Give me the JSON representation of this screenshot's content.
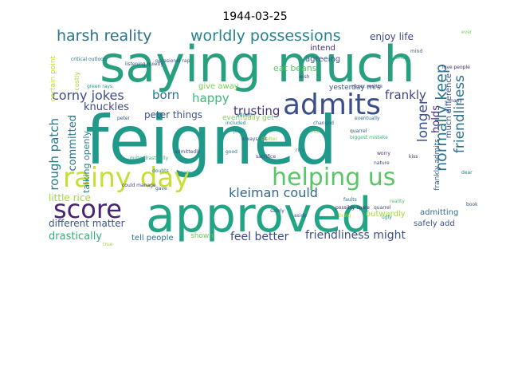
{
  "title": "1944-03-25",
  "wordcloud": {
    "words": [
      {
        "text": "feigned",
        "color": "#1f9a8a"
      },
      {
        "text": "saying much",
        "color": "#26a07f"
      },
      {
        "text": "approved",
        "color": "#21a585"
      },
      {
        "text": "rainy day",
        "color": "#c8de35"
      },
      {
        "text": "admits",
        "color": "#3b4e8c"
      },
      {
        "text": "score",
        "color": "#482475"
      },
      {
        "text": "helping us",
        "color": "#58c765"
      },
      {
        "text": "harsh reality",
        "color": "#2c728e"
      },
      {
        "text": "worldly possessions",
        "color": "#26828e"
      },
      {
        "text": "enjoy life",
        "color": "#3f4889"
      },
      {
        "text": "corny jokes",
        "color": "#3e4c8a"
      },
      {
        "text": "born",
        "color": "#2b748e"
      },
      {
        "text": "happy",
        "color": "#3cbb75"
      },
      {
        "text": "frankly",
        "color": "#414487"
      },
      {
        "text": "trusting",
        "color": "#46337f"
      },
      {
        "text": "peter things",
        "color": "#3b528b"
      },
      {
        "text": "knuckles",
        "color": "#3e4a89"
      },
      {
        "text": "kleiman could",
        "color": "#31688e"
      },
      {
        "text": "little rice",
        "color": "#a2da37"
      },
      {
        "text": "different matter",
        "color": "#3b528b"
      },
      {
        "text": "drastically",
        "color": "#2db27d"
      },
      {
        "text": "feel better",
        "color": "#3e4989"
      },
      {
        "text": "friendliness might",
        "color": "#3d4e8a"
      },
      {
        "text": "tell people",
        "color": "#2d708e"
      },
      {
        "text": "shown",
        "color": "#6ece58"
      },
      {
        "text": "safely add",
        "color": "#3b528b"
      },
      {
        "text": "admitting",
        "color": "#2e6e8e"
      },
      {
        "text": "outwardly",
        "color": "#a5db36"
      },
      {
        "text": "yesterday mrs",
        "color": "#3b528b"
      },
      {
        "text": "eat beans",
        "color": "#56c667"
      },
      {
        "text": "give away",
        "color": "#7ad151"
      },
      {
        "text": "intend",
        "color": "#46327e"
      },
      {
        "text": "agreeing",
        "color": "#39558c"
      },
      {
        "text": "eventually get",
        "color": "#7fd34e"
      },
      {
        "text": "rough patch",
        "color": "#2a788e"
      },
      {
        "text": "committed",
        "color": "#2a788e"
      },
      {
        "text": "talking openly",
        "color": "#277f8e"
      },
      {
        "text": "longer",
        "color": "#3c4f8a"
      },
      {
        "text": "holds",
        "color": "#472c7a"
      },
      {
        "text": "normally keep",
        "color": "#2c738e"
      },
      {
        "text": "friendliness",
        "color": "#2e6f8e"
      },
      {
        "text": "much difference",
        "color": "#3a538b"
      },
      {
        "text": "frankly admits",
        "color": "#375a8c"
      },
      {
        "text": "certain point",
        "color": "#bddf26"
      },
      {
        "text": "costly",
        "color": "#a8db34"
      },
      {
        "text": "occasional rap",
        "color": "#3b528b"
      },
      {
        "text": "critical outlook",
        "color": "#2a788e"
      },
      {
        "text": "listening quietly",
        "color": "#3e4a89"
      },
      {
        "text": "green rays",
        "color": "#1f988b"
      },
      {
        "text": "could manage",
        "color": "#424086"
      },
      {
        "text": "biggest mistake",
        "color": "#35b779"
      },
      {
        "text": "never realize",
        "color": "#3e4989"
      },
      {
        "text": "always eat",
        "color": "#3b528b"
      },
      {
        "text": "love people",
        "color": "#46307e"
      },
      {
        "text": "eventually",
        "color": "#2e6e8e"
      },
      {
        "text": "quite drastically",
        "color": "#2db27d"
      },
      {
        "text": "possibly spare",
        "color": "#482677"
      },
      {
        "text": "quarrel",
        "color": "#404688"
      },
      {
        "text": "reality",
        "color": "#4ac16d"
      },
      {
        "text": "safely",
        "color": "#375a8c"
      },
      {
        "text": "aside",
        "color": "#3b528b"
      },
      {
        "text": "bring",
        "color": "#cae11f"
      },
      {
        "text": "ugly",
        "color": "#1fa188"
      },
      {
        "text": "faults",
        "color": "#2c718e"
      },
      {
        "text": "added",
        "color": "#25848e"
      },
      {
        "text": "admittedly",
        "color": "#3e4a89"
      },
      {
        "text": "doubts",
        "color": "#26828e"
      },
      {
        "text": "quarrel",
        "color": "#3b528b"
      },
      {
        "text": "side",
        "color": "#56c667"
      },
      {
        "text": "rice",
        "color": "#2c728e"
      },
      {
        "text": "worry",
        "color": "#46337f"
      },
      {
        "text": "changed",
        "color": "#31688e"
      },
      {
        "text": "included",
        "color": "#24878e"
      },
      {
        "text": "nature",
        "color": "#3e4989"
      },
      {
        "text": "shelter",
        "color": "#a0da39"
      },
      {
        "text": "jokes",
        "color": "#2a788e"
      },
      {
        "text": "peter",
        "color": "#3b528b"
      },
      {
        "text": "spare",
        "color": "#21918c"
      },
      {
        "text": "wish",
        "color": "#3e4989"
      },
      {
        "text": "sacrifice",
        "color": "#46327e"
      },
      {
        "text": "gave",
        "color": "#31688e"
      },
      {
        "text": "good",
        "color": "#2a788e"
      },
      {
        "text": "ever",
        "color": "#7ad151"
      },
      {
        "text": "mind",
        "color": "#3b528b"
      },
      {
        "text": "kind",
        "color": "#35b779"
      },
      {
        "text": "many",
        "color": "#3e4989"
      },
      {
        "text": "kiss",
        "color": "#46327e"
      },
      {
        "text": "dear",
        "color": "#26828e"
      },
      {
        "text": "book",
        "color": "#3b528b"
      },
      {
        "text": "true",
        "color": "#a0da39"
      }
    ]
  }
}
